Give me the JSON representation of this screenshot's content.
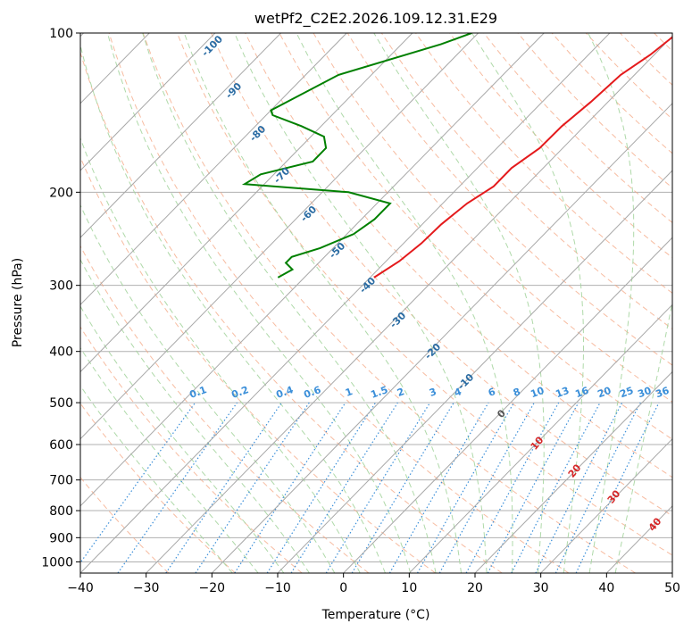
{
  "chart_data": {
    "type": "line",
    "subtype": "skew-T log-P diagram",
    "title": "wetPf2_C2E2.2026.109.12.31.E29",
    "xlabel": "Temperature (°C)",
    "ylabel": "Pressure (hPa)",
    "xlim": [
      -40,
      50
    ],
    "ylim": [
      1050,
      100
    ],
    "y_scale": "log",
    "x_ticks": [
      -40,
      -30,
      -20,
      -10,
      0,
      10,
      20,
      30,
      40,
      50
    ],
    "y_ticks": [
      100,
      200,
      300,
      400,
      500,
      600,
      700,
      800,
      900,
      1000
    ],
    "grid": true,
    "colors": {
      "temperature": "#e41a1c",
      "dewpoint": "#008000",
      "isotherm": "#999999",
      "dry_adiabat": "#f4a582",
      "moist_adiabat": "#a6d5a0",
      "mixing_ratio": "#3b8fd9",
      "isotherm_label": "#2b6ca3",
      "moist_label": "#d62728"
    },
    "series": [
      {
        "key": "temperature",
        "pressure": [
          290,
          270,
          250,
          230,
          210,
          195,
          180,
          165,
          150,
          135,
          120,
          110,
          100
        ],
        "temp": [
          -39.4,
          -38.0,
          -37.3,
          -37.1,
          -36.3,
          -34.8,
          -34.8,
          -33.5,
          -33.4,
          -32.6,
          -32.1,
          -30.6,
          -29.7
        ]
      },
      {
        "key": "dewpoint",
        "pressure": [
          290,
          280,
          272,
          265,
          255,
          240,
          225,
          210,
          200,
          193,
          185,
          175,
          165,
          157,
          150,
          143,
          140,
          120,
          105,
          100
        ],
        "temp": [
          -54,
          -53,
          -55,
          -55,
          -52,
          -49,
          -48,
          -48,
          -56,
          -73,
          -72,
          -66,
          -66,
          -68,
          -73,
          -79,
          -80,
          -75,
          -64,
          -61
        ]
      }
    ],
    "isotherm_labels": [
      -100,
      -90,
      -80,
      -70,
      -60,
      -50,
      -40,
      -30,
      -20,
      -10
    ],
    "isotherm_label_extra": "0",
    "mixing_ratio_labels": [
      "0.1",
      "0.2",
      "0.4",
      "0.6",
      "1",
      "1.5",
      "2",
      "3",
      "4",
      "6",
      "8",
      "10",
      "13",
      "16",
      "20",
      "25",
      "30",
      "36"
    ],
    "mixing_ratio_values": [
      0.1,
      0.2,
      0.4,
      0.6,
      1,
      1.5,
      2,
      3,
      4,
      6,
      8,
      10,
      13,
      16,
      20,
      25,
      30,
      36
    ],
    "moist_adiabat_labels": [
      "10",
      "20",
      "30",
      "40"
    ]
  }
}
